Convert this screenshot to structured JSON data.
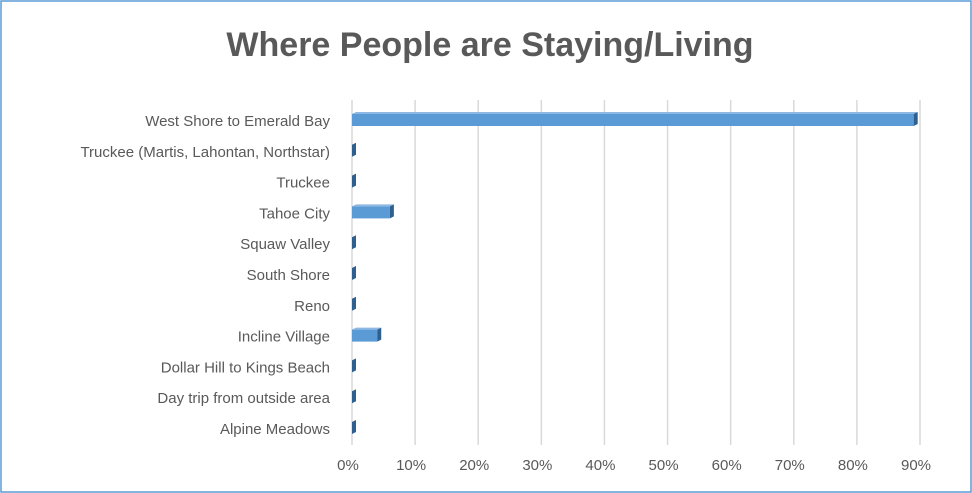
{
  "chart_data": {
    "type": "bar",
    "orientation": "horizontal",
    "title": "Where People are Staying/Living",
    "categories": [
      "West Shore to Emerald Bay",
      "Truckee (Martis, Lahontan, Northstar)",
      "Truckee",
      "Tahoe City",
      "Squaw Valley",
      "South Shore",
      "Reno",
      "Incline Village",
      "Dollar Hill to Kings Beach",
      "Day trip from outside area",
      "Alpine Meadows"
    ],
    "values": [
      89,
      0,
      0,
      6,
      0,
      0,
      0,
      4,
      0,
      0,
      0
    ],
    "color": "#5b9bd5",
    "xlim": [
      0,
      90
    ],
    "xticks": [
      {
        "value": 0,
        "label": "0%"
      },
      {
        "value": 10,
        "label": "10%"
      },
      {
        "value": 20,
        "label": "20%"
      },
      {
        "value": 30,
        "label": "30%"
      },
      {
        "value": 40,
        "label": "40%"
      },
      {
        "value": 50,
        "label": "50%"
      },
      {
        "value": 60,
        "label": "60%"
      },
      {
        "value": 70,
        "label": "70%"
      },
      {
        "value": 80,
        "label": "80%"
      },
      {
        "value": 90,
        "label": "90%"
      }
    ],
    "grid": true
  }
}
